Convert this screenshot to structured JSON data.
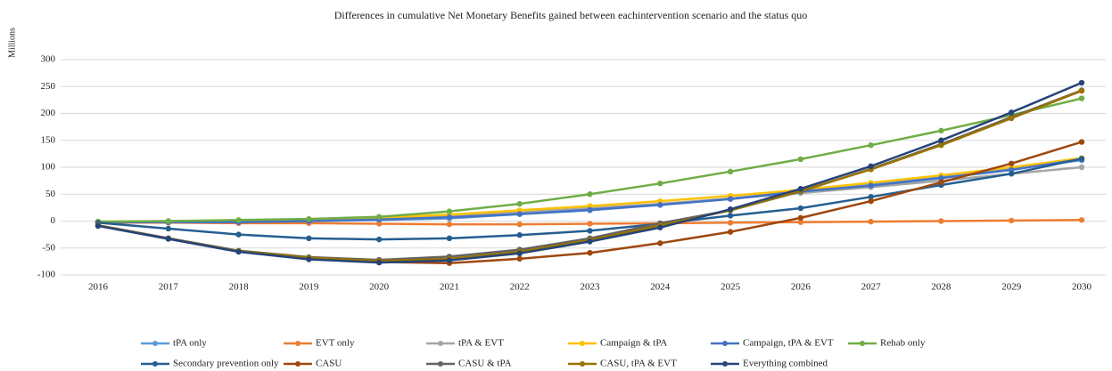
{
  "chart_data": {
    "type": "line",
    "title": "Differences in cumulative Net Monetary Benefits gained between eachintervention scenario and the status quo",
    "y_label": "Millions",
    "categories": [
      "2016",
      "2017",
      "2018",
      "2019",
      "2020",
      "2021",
      "2022",
      "2023",
      "2024",
      "2025",
      "2026",
      "2027",
      "2028",
      "2029",
      "2030"
    ],
    "ylim": [
      -100,
      300
    ],
    "yticks": [
      -100,
      -50,
      0,
      50,
      100,
      150,
      200,
      250,
      300
    ],
    "grid": true,
    "legend": "bottom",
    "series": [
      {
        "name": "tPA only",
        "color": "#5b9bd5",
        "values": [
          -2,
          -2,
          -2,
          0,
          2,
          5,
          13,
          20,
          30,
          42,
          55,
          67,
          82,
          97,
          113
        ]
      },
      {
        "name": "EVT only",
        "color": "#ed7d31",
        "values": [
          -3,
          -3,
          -4,
          -4,
          -5,
          -6,
          -6,
          -5,
          -4,
          -3,
          -2,
          -1,
          0,
          1,
          2
        ]
      },
      {
        "name": "tPA & EVT",
        "color": "#a5a5a5",
        "values": [
          -2,
          -1,
          0,
          2,
          5,
          9,
          16,
          24,
          32,
          42,
          52,
          63,
          75,
          88,
          100
        ]
      },
      {
        "name": "Campaign & tPA",
        "color": "#ffc000",
        "values": [
          -1,
          0,
          1,
          3,
          6,
          12,
          20,
          28,
          37,
          47,
          58,
          71,
          85,
          100,
          117
        ]
      },
      {
        "name": "Campaign, tPA & EVT",
        "color": "#4472c4",
        "values": [
          -2,
          -2,
          -2,
          0,
          3,
          7,
          13,
          21,
          30,
          41,
          55,
          66,
          80,
          95,
          115
        ]
      },
      {
        "name": "Rehab only",
        "color": "#70ad47",
        "values": [
          -1,
          0,
          2,
          4,
          8,
          18,
          32,
          50,
          70,
          92,
          115,
          141,
          168,
          197,
          228
        ]
      },
      {
        "name": "Secondary prevention only",
        "color": "#255e91",
        "values": [
          -3,
          -14,
          -25,
          -32,
          -34,
          -32,
          -26,
          -18,
          -5,
          10,
          24,
          45,
          67,
          88,
          116
        ]
      },
      {
        "name": "CASU",
        "color": "#9e480e",
        "values": [
          -8,
          -32,
          -56,
          -69,
          -76,
          -78,
          -70,
          -59,
          -41,
          -20,
          6,
          37,
          72,
          107,
          147
        ]
      },
      {
        "name": "CASU & tPA",
        "color": "#636363",
        "values": [
          -8,
          -32,
          -55,
          -67,
          -72,
          -66,
          -53,
          -32,
          -4,
          20,
          55,
          97,
          143,
          193,
          243
        ]
      },
      {
        "name": "CASU, tPA & EVT",
        "color": "#997300",
        "values": [
          -8,
          -33,
          -56,
          -68,
          -74,
          -70,
          -57,
          -35,
          -8,
          20,
          56,
          96,
          141,
          191,
          242
        ]
      },
      {
        "name": "Everything combined",
        "color": "#264478",
        "values": [
          -9,
          -33,
          -57,
          -71,
          -77,
          -73,
          -60,
          -38,
          -12,
          22,
          60,
          102,
          150,
          202,
          257
        ]
      }
    ]
  }
}
